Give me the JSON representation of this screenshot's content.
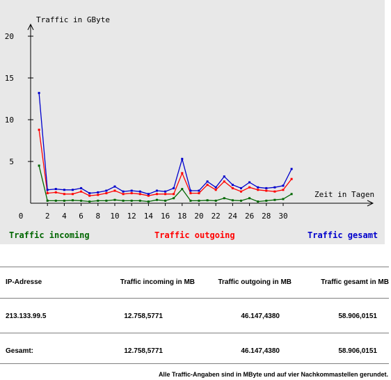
{
  "chart_data": {
    "type": "line",
    "ylabel": "Traffic in GByte",
    "xlabel": "Zeit in Tagen",
    "ylim": [
      0,
      20
    ],
    "xlim": [
      0,
      31
    ],
    "yticks": [
      0,
      5,
      10,
      15,
      20
    ],
    "xticks": [
      0,
      2,
      4,
      6,
      8,
      10,
      12,
      14,
      16,
      18,
      20,
      22,
      24,
      26,
      28,
      30
    ],
    "x": [
      1,
      2,
      3,
      4,
      5,
      6,
      7,
      8,
      9,
      10,
      11,
      12,
      13,
      14,
      15,
      16,
      17,
      18,
      19,
      20,
      21,
      22,
      23,
      24,
      25,
      26,
      27,
      28,
      29,
      30,
      31
    ],
    "series": [
      {
        "name": "Traffic incoming",
        "color": "#006600",
        "values": [
          4.5,
          0.3,
          0.3,
          0.3,
          0.35,
          0.3,
          0.2,
          0.3,
          0.3,
          0.4,
          0.3,
          0.3,
          0.3,
          0.2,
          0.4,
          0.3,
          0.6,
          1.7,
          0.3,
          0.3,
          0.35,
          0.3,
          0.6,
          0.35,
          0.3,
          0.6,
          0.2,
          0.3,
          0.4,
          0.5,
          1.1
        ]
      },
      {
        "name": "Traffic outgoing",
        "color": "#ff0000",
        "values": [
          8.8,
          1.2,
          1.3,
          1.1,
          1.1,
          1.4,
          0.9,
          1.0,
          1.2,
          1.5,
          1.1,
          1.2,
          1.1,
          0.9,
          1.1,
          1.1,
          1.1,
          3.6,
          1.2,
          1.2,
          2.2,
          1.6,
          2.6,
          1.8,
          1.4,
          1.9,
          1.6,
          1.5,
          1.4,
          1.6,
          2.9
        ]
      },
      {
        "name": "Traffic gesamt",
        "color": "#0000cc",
        "values": [
          13.2,
          1.6,
          1.7,
          1.6,
          1.6,
          1.8,
          1.2,
          1.3,
          1.5,
          2.0,
          1.4,
          1.5,
          1.4,
          1.1,
          1.5,
          1.4,
          1.8,
          5.3,
          1.5,
          1.5,
          2.6,
          1.9,
          3.2,
          2.2,
          1.8,
          2.5,
          1.9,
          1.8,
          1.9,
          2.1,
          4.1
        ]
      }
    ]
  },
  "legend": {
    "incoming": "Traffic incoming",
    "outgoing": "Traffic outgoing",
    "gesamt": "Traffic gesamt"
  },
  "table": {
    "headers": [
      "IP-Adresse",
      "Traffic incoming in MB",
      "Traffic outgoing in MB",
      "Traffic gesamt in MB"
    ],
    "row": [
      "213.133.99.5",
      "12.758,5771",
      "46.147,4380",
      "58.906,0151"
    ],
    "total": [
      "Gesamt:",
      "12.758,5771",
      "46.147,4380",
      "58.906,0151"
    ]
  },
  "footnote": "Alle Traffic-Angaben sind in MByte und auf vier Nachkommastellen gerundet."
}
